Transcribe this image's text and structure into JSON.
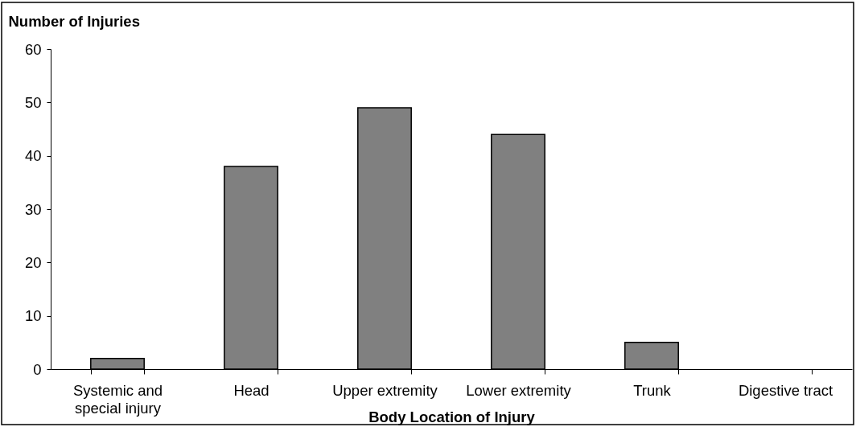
{
  "chart_data": {
    "type": "bar",
    "xlabel": "Body Location of Injury",
    "ylabel": "Number of Injuries",
    "categories": [
      "Systemic and special injury",
      "Head",
      "Upper extremity",
      "Lower extremity",
      "Trunk",
      "Digestive tract"
    ],
    "values": [
      2,
      38,
      49,
      44,
      5,
      0
    ],
    "color": "#808080",
    "ylim": [
      0,
      60
    ],
    "yticks": [
      0,
      10,
      20,
      30,
      40,
      50,
      60
    ]
  }
}
